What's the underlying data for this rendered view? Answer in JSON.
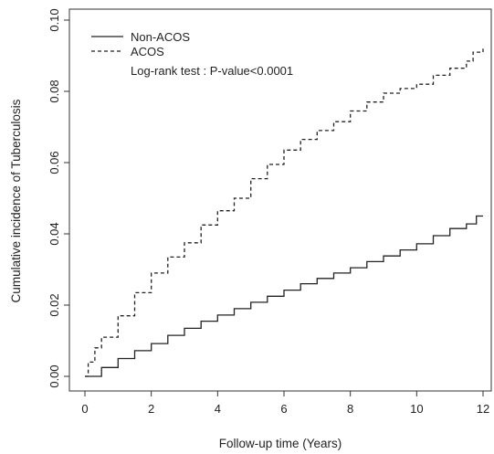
{
  "chart_data": {
    "type": "line",
    "title": "",
    "xlabel": "Follow-up time (Years)",
    "ylabel": "Cumulative incidence of Tuberculosis",
    "xlim": [
      0,
      12
    ],
    "ylim": [
      0,
      0.1
    ],
    "x_ticks": [
      "0",
      "2",
      "4",
      "6",
      "8",
      "10",
      "12"
    ],
    "y_ticks": [
      "0.00",
      "0.02",
      "0.04",
      "0.06",
      "0.08",
      "0.10"
    ],
    "grid": false,
    "legend_position": "top-left",
    "annotation": "Log-rank test : P-value<0.0001",
    "series": [
      {
        "name": "Non-ACOS",
        "line_style": "solid",
        "x": [
          0,
          0.5,
          1,
          1.5,
          2,
          2.5,
          3,
          3.5,
          4,
          4.5,
          5,
          5.5,
          6,
          6.5,
          7,
          7.5,
          8,
          8.5,
          9,
          9.5,
          10,
          10.5,
          11,
          11.5,
          11.8,
          12
        ],
        "y": [
          0,
          0.0025,
          0.005,
          0.0072,
          0.0092,
          0.0115,
          0.0135,
          0.0155,
          0.0172,
          0.019,
          0.0208,
          0.0225,
          0.0242,
          0.026,
          0.0275,
          0.029,
          0.0305,
          0.0322,
          0.0338,
          0.0355,
          0.0372,
          0.0395,
          0.0415,
          0.0428,
          0.045,
          0.045
        ]
      },
      {
        "name": "ACOS",
        "line_style": "dashed",
        "x": [
          0,
          0.1,
          0.3,
          0.5,
          1,
          1.5,
          2,
          2.5,
          3,
          3.5,
          4,
          4.5,
          5,
          5.5,
          6,
          6.5,
          7,
          7.5,
          8,
          8.5,
          9,
          9.5,
          10,
          10.5,
          11,
          11.5,
          11.7,
          12
        ],
        "y": [
          0,
          0.004,
          0.008,
          0.011,
          0.017,
          0.0235,
          0.029,
          0.0335,
          0.0375,
          0.0425,
          0.0465,
          0.05,
          0.0555,
          0.0595,
          0.0635,
          0.0665,
          0.069,
          0.0715,
          0.0745,
          0.077,
          0.0795,
          0.0808,
          0.082,
          0.0845,
          0.0865,
          0.0885,
          0.091,
          0.092
        ]
      }
    ]
  }
}
